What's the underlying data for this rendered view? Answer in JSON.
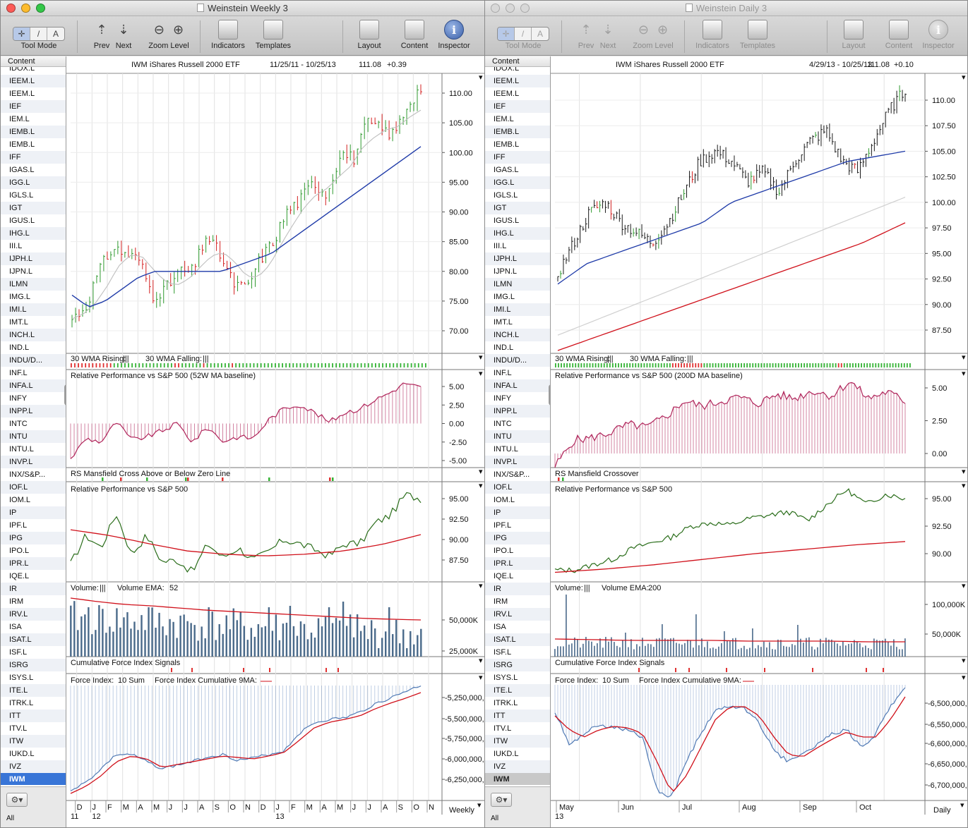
{
  "windows": [
    {
      "id": "weekly",
      "title": "Weinstein Weekly 3",
      "active": true,
      "toolbar": {
        "tool_mode": "Tool Mode",
        "tool_buttons": [
          "✛",
          "/",
          "A"
        ],
        "prev": "Prev",
        "next": "Next",
        "zoom": "Zoom",
        "level": "Level",
        "indicators": "Indicators",
        "templates": "Templates",
        "layout": "Layout",
        "content": "Content",
        "inspector": "Inspector"
      },
      "sidebar": {
        "header": "Content",
        "items": [
          "IDOX.L",
          "IEEM.L",
          "IEEM.L",
          "IEF",
          "IEM.L",
          "IEMB.L",
          "IEMB.L",
          "IFF",
          "IGAS.L",
          "IGG.L",
          "IGLS.L",
          "IGT",
          "IGUS.L",
          "IHG.L",
          "III.L",
          "IJPH.L",
          "IJPN.L",
          "ILMN",
          "IMG.L",
          "IMI.L",
          "IMT.L",
          "INCH.L",
          "IND.L",
          "INDU/D...",
          "INF.L",
          "INFA.L",
          "INFY",
          "INPP.L",
          "INTC",
          "INTU",
          "INTU.L",
          "INVP.L",
          "INX/S&P...",
          "IOF.L",
          "IOM.L",
          "IP",
          "IPF.L",
          "IPG",
          "IPO.L",
          "IPR.L",
          "IQE.L",
          "IR",
          "IRM",
          "IRV.L",
          "ISA",
          "ISAT.L",
          "ISF.L",
          "ISRG",
          "ISYS.L",
          "ITE.L",
          "ITRK.L",
          "ITT",
          "ITV.L",
          "ITW",
          "IUKD.L",
          "IVZ",
          "IWM"
        ],
        "selected": "IWM",
        "footer_label": "All"
      },
      "header": {
        "symbol": "IWM",
        "name": "iShares Russell 2000 ETF",
        "range": "11/25/11 - 10/25/13",
        "price": "111.08",
        "change": "+0.39"
      },
      "panels": {
        "signals_title_rising": "30 WMA Rising:",
        "signals_title_falling": "30 WMA Falling:",
        "relperf_title": "Relative Performance vs S&P 500 (52W MA baseline)",
        "mansfield_title": "RS Mansfield Cross Above or Below Zero Line",
        "rp_title": "Relative Performance vs S&P 500",
        "volume_title": "Volume:",
        "volume_ema_label": "Volume EMA:",
        "volume_ema_value": "52",
        "cfi_title": "Cumulative Force Index Signals",
        "fi_title": "Force Index:",
        "fi_sum": "10 Sum",
        "fi_cum": "Force Index Cumulative 9MA:"
      },
      "axis": {
        "price_ticks": [
          "110.00",
          "105.00",
          "100.00",
          "95.00",
          "90.00",
          "85.00",
          "80.00",
          "75.00",
          "70.00"
        ],
        "relperf_ticks": [
          "5.00",
          "2.50",
          "0.00",
          "-2.50",
          "-5.00"
        ],
        "rp_ticks": [
          "95.00",
          "92.50",
          "90.00",
          "87.50"
        ],
        "volume_ticks": [
          "50,000K",
          "25,000K"
        ],
        "fi_ticks": [
          "-5,250,000,",
          "-5,500,000,",
          "-5,750,000,",
          "-6,000,000,",
          "-6,250,000,"
        ],
        "months": [
          "D",
          "J",
          "F",
          "M",
          "A",
          "M",
          "J",
          "J",
          "A",
          "S",
          "O",
          "N",
          "D",
          "J",
          "F",
          "M",
          "A",
          "M",
          "J",
          "J",
          "A",
          "S",
          "O",
          "N"
        ],
        "years": [
          "11",
          "12",
          "13"
        ],
        "periodicity": "Weekly"
      },
      "chart_data": {
        "type": "line",
        "title": "IWM  iShares Russell 2000 ETF",
        "x_range": [
          "11/25/11",
          "10/25/13"
        ],
        "ylim": [
          66,
          112
        ],
        "price_approx": [
          72,
          74,
          80,
          84,
          83,
          82,
          76,
          77,
          80,
          80,
          86,
          83,
          78,
          77,
          82,
          85,
          90,
          92,
          95,
          93,
          100,
          99,
          105,
          104,
          103,
          108,
          111
        ],
        "ma_30w_approx": [
          76,
          74,
          75,
          77,
          79,
          80,
          80,
          80,
          80,
          80,
          81,
          82,
          83,
          85,
          87,
          89,
          91,
          93,
          95,
          97,
          99,
          101
        ]
      },
      "colors": {
        "ma_fast": "#bfbfbf",
        "ma_slow": "#1e3aa8",
        "rs_line": "#2a6d1a",
        "baseline": "#d0101a",
        "hist": "#b0245a",
        "volume": "#4a6a8a",
        "fi": "#4f79b4"
      }
    },
    {
      "id": "daily",
      "title": "Weinstein Daily 3",
      "active": false,
      "toolbar": {
        "tool_mode": "Tool Mode",
        "tool_buttons": [
          "✛",
          "/",
          "A"
        ],
        "prev": "Prev",
        "next": "Next",
        "zoom": "Zoom",
        "level": "Level",
        "indicators": "Indicators",
        "templates": "Templates",
        "layout": "Layout",
        "content": "Content",
        "inspector": "Inspector"
      },
      "sidebar": {
        "header": "Content",
        "items": [
          "IDOX.L",
          "IEEM.L",
          "IEEM.L",
          "IEF",
          "IEM.L",
          "IEMB.L",
          "IEMB.L",
          "IFF",
          "IGAS.L",
          "IGG.L",
          "IGLS.L",
          "IGT",
          "IGUS.L",
          "IHG.L",
          "III.L",
          "IJPH.L",
          "IJPN.L",
          "ILMN",
          "IMG.L",
          "IMI.L",
          "IMT.L",
          "INCH.L",
          "IND.L",
          "INDU/D...",
          "INF.L",
          "INFA.L",
          "INFY",
          "INPP.L",
          "INTC",
          "INTU",
          "INTU.L",
          "INVP.L",
          "INX/S&P...",
          "IOF.L",
          "IOM.L",
          "IP",
          "IPF.L",
          "IPG",
          "IPO.L",
          "IPR.L",
          "IQE.L",
          "IR",
          "IRM",
          "IRV.L",
          "ISA",
          "ISAT.L",
          "ISF.L",
          "ISRG",
          "ISYS.L",
          "ITE.L",
          "ITRK.L",
          "ITT",
          "ITV.L",
          "ITW",
          "IUKD.L",
          "IVZ",
          "IWM"
        ],
        "selected": "IWM",
        "footer_label": "All"
      },
      "header": {
        "symbol": "IWM",
        "name": "iShares Russell 2000 ETF",
        "range": "4/29/13 - 10/25/13",
        "price": "111.08",
        "change": "+0.10"
      },
      "panels": {
        "signals_title_rising": "30 WMA Rising:",
        "signals_title_falling": "30 WMA Falling:",
        "relperf_title": "Relative Performance vs S&P 500 (200D MA baseline)",
        "mansfield_title": "RS Mansfield Crossover",
        "rp_title": "Relative Performance vs S&P 500",
        "volume_title": "Volume:",
        "volume_ema_label": "Volume EMA:",
        "volume_ema_value": "200",
        "cfi_title": "Cumulative Force Index Signals",
        "fi_title": "Force Index:",
        "fi_sum": "10 Sum",
        "fi_cum": "Force Index Cumulative 9MA:"
      },
      "axis": {
        "price_ticks": [
          "110.00",
          "107.50",
          "105.00",
          "102.50",
          "100.00",
          "97.50",
          "95.00",
          "92.50",
          "90.00",
          "87.50"
        ],
        "relperf_ticks": [
          "5.00",
          "2.50",
          "0.00"
        ],
        "rp_ticks": [
          "95.00",
          "92.50",
          "90.00"
        ],
        "volume_ticks": [
          "100,000K",
          "50,000K"
        ],
        "fi_ticks": [
          "-6,500,000,",
          "-6,550,000,",
          "-6,600,000,",
          "-6,650,000,",
          "-6,700,000,"
        ],
        "months": [
          "May",
          "Jun",
          "Jul",
          "Aug",
          "Sep",
          "Oct"
        ],
        "years": [
          "13"
        ],
        "periodicity": "Daily"
      },
      "chart_data": {
        "type": "line",
        "title": "IWM  iShares Russell 2000 ETF",
        "x_range": [
          "4/29/13",
          "10/25/13"
        ],
        "ylim": [
          85.5,
          111.5
        ],
        "price_approx": [
          93,
          96,
          99,
          100,
          98,
          97,
          96,
          98,
          101,
          104,
          105,
          104,
          102,
          103,
          101,
          104,
          106,
          107,
          104,
          103,
          106,
          109,
          111
        ],
        "ma_50d_approx": [
          92,
          94,
          95,
          96,
          97,
          98,
          100,
          101,
          102,
          103,
          104,
          104.5,
          105
        ],
        "ma_150d_approx": [
          87,
          88.5,
          90,
          91.5,
          93,
          94.5,
          96,
          97.5,
          99,
          100.5
        ],
        "ma_200d_approx": [
          85.5,
          87,
          88.5,
          90,
          91.5,
          93,
          94.5,
          96,
          98
        ]
      },
      "colors": {
        "ma_fast": "#1e3aa8",
        "ma_mid": "#cfcfcf",
        "ma_slow": "#d0101a",
        "rs_line": "#2a6d1a",
        "baseline": "#d0101a",
        "hist": "#b0245a",
        "volume": "#4a6a8a",
        "fi": "#4f79b4"
      }
    }
  ]
}
